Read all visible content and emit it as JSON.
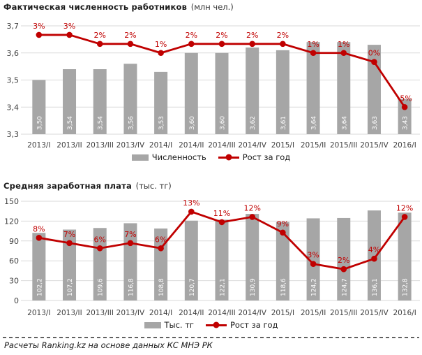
{
  "page": {
    "footer": "Расчеты Ranking.kz на основе данных КС МНЭ РК"
  },
  "colors": {
    "bar": "#a6a6a6",
    "line": "#c00000",
    "grid": "#d9d9d9",
    "axis_text": "#3f3f3f",
    "bar_label_text": "#ffffff"
  },
  "chart_data": [
    {
      "type": "bar",
      "combo": "bar+line",
      "title": "Фактическая численность работников",
      "title_unit": "(млн чел.)",
      "grid": true,
      "legend_position": "bottom",
      "categories": [
        "2013/I",
        "2013/II",
        "2013/III",
        "2013/IV",
        "2014/I",
        "2014/II",
        "2014/III",
        "2014/IV",
        "2015/I",
        "2015/II",
        "2015/III",
        "2015/IV",
        "2016/I"
      ],
      "series": [
        {
          "name": "Численность",
          "type": "bar",
          "values": [
            3.5,
            3.54,
            3.54,
            3.56,
            3.53,
            3.6,
            3.6,
            3.62,
            3.61,
            3.64,
            3.64,
            3.63,
            3.43
          ],
          "labels": [
            "3,50",
            "3,54",
            "3,54",
            "3,56",
            "3,53",
            "3,60",
            "3,60",
            "3,62",
            "3,61",
            "3,64",
            "3,64",
            "3,63",
            "3,43"
          ]
        },
        {
          "name": "Рост за год",
          "type": "line",
          "values": [
            3,
            3,
            2,
            2,
            1,
            2,
            2,
            2,
            2,
            1,
            1,
            0,
            -5
          ],
          "labels": [
            "3%",
            "3%",
            "2%",
            "2%",
            "1%",
            "2%",
            "2%",
            "2%",
            "2%",
            "1%",
            "1%",
            "0%",
            "-5%"
          ]
        }
      ],
      "y_axis": {
        "ticks": [
          "3,7",
          "3,6",
          "3,5",
          "3,4",
          "3,3"
        ],
        "range": [
          3.3,
          3.7
        ]
      },
      "line_axis_range": [
        -8,
        4
      ]
    },
    {
      "type": "bar",
      "combo": "bar+line",
      "title": "Средняя заработная плата",
      "title_unit": "(тыс. тг)",
      "grid": true,
      "legend_position": "bottom",
      "categories": [
        "2013/I",
        "2013/II",
        "2013/III",
        "2013/IV",
        "2014/I",
        "2014/II",
        "2014/III",
        "2014/IV",
        "2015/I",
        "2015/II",
        "2015/III",
        "2015/IV",
        "2016/I"
      ],
      "series": [
        {
          "name": "Тыс. тг",
          "type": "bar",
          "values": [
            102.2,
            107.2,
            109.6,
            116.8,
            108.8,
            120.7,
            122.1,
            130.9,
            118.6,
            124.2,
            124.7,
            136.1,
            132.8
          ],
          "labels": [
            "102,2",
            "107,2",
            "109,6",
            "116,8",
            "108,8",
            "120,7",
            "122,1",
            "130,9",
            "118,6",
            "124,2",
            "124,7",
            "136,1",
            "132,8"
          ]
        },
        {
          "name": "Рост за год",
          "type": "line",
          "values": [
            8,
            7,
            6,
            7,
            6,
            13,
            11,
            12,
            9,
            3,
            2,
            4,
            12
          ],
          "labels": [
            "8%",
            "7%",
            "6%",
            "7%",
            "6%",
            "13%",
            "11%",
            "12%",
            "9%",
            "3%",
            "2%",
            "4%",
            "12%"
          ]
        }
      ],
      "y_axis": {
        "ticks": [
          "150",
          "120",
          "90",
          "60",
          "30",
          "0"
        ],
        "range": [
          0,
          150
        ]
      },
      "line_axis_range": [
        -4,
        15
      ]
    }
  ]
}
